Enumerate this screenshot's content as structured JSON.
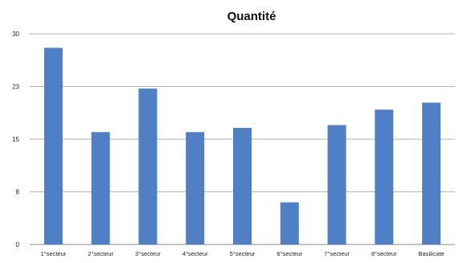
{
  "chart_data": {
    "type": "bar",
    "title": "Quantité",
    "categories": [
      "1°secteur",
      "2°secteur",
      "3°secteur",
      "4°secteur",
      "5°secteur",
      "6°secteur",
      "7°secteur",
      "8°secteur",
      "Basilicate"
    ],
    "values": [
      28,
      16,
      22.2,
      16,
      16.6,
      6,
      17,
      19.2,
      20.2
    ],
    "yticks": [
      "0",
      "8",
      "15",
      "23",
      "30"
    ],
    "ylim": [
      0,
      30
    ],
    "grid": true,
    "legend": "none",
    "bar_color": "#4f7fc5"
  }
}
